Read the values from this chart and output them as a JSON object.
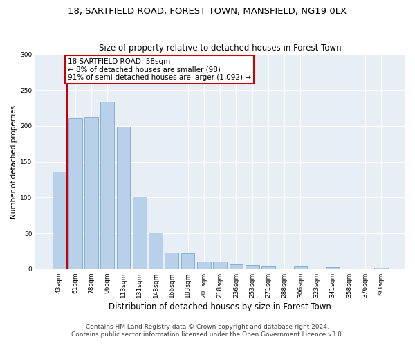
{
  "title1": "18, SARTFIELD ROAD, FOREST TOWN, MANSFIELD, NG19 0LX",
  "title2": "Size of property relative to detached houses in Forest Town",
  "xlabel": "Distribution of detached houses by size in Forest Town",
  "ylabel": "Number of detached properties",
  "categories": [
    "43sqm",
    "61sqm",
    "78sqm",
    "96sqm",
    "113sqm",
    "131sqm",
    "148sqm",
    "166sqm",
    "183sqm",
    "201sqm",
    "218sqm",
    "236sqm",
    "253sqm",
    "271sqm",
    "288sqm",
    "306sqm",
    "323sqm",
    "341sqm",
    "358sqm",
    "376sqm",
    "393sqm"
  ],
  "values": [
    136,
    211,
    213,
    234,
    199,
    101,
    51,
    23,
    22,
    10,
    10,
    7,
    6,
    4,
    0,
    4,
    0,
    3,
    0,
    0,
    2
  ],
  "bar_color": "#b8d0ea",
  "bar_edge_color": "#7aaad0",
  "annotation_box_text": "18 SARTFIELD ROAD: 58sqm\n← 8% of detached houses are smaller (98)\n91% of semi-detached houses are larger (1,092) →",
  "annotation_box_color": "#ffffff",
  "annotation_box_edge_color": "#cc0000",
  "vline_color": "#cc0000",
  "vline_x": 0.5,
  "ylim": [
    0,
    300
  ],
  "yticks": [
    0,
    50,
    100,
    150,
    200,
    250,
    300
  ],
  "footer1": "Contains HM Land Registry data © Crown copyright and database right 2024.",
  "footer2": "Contains public sector information licensed under the Open Government Licence v3.0.",
  "bg_color": "#ffffff",
  "plot_bg_color": "#e8eef5",
  "grid_color": "#ffffff",
  "title1_fontsize": 9.5,
  "title2_fontsize": 8.5,
  "xlabel_fontsize": 8.5,
  "ylabel_fontsize": 7.5,
  "tick_fontsize": 6.5,
  "footer_fontsize": 6.5,
  "annot_fontsize": 7.5
}
